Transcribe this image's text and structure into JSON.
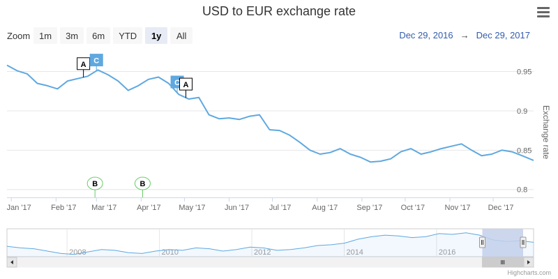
{
  "title": "USD to EUR exchange rate",
  "zoom": {
    "label": "Zoom",
    "buttons": [
      "1m",
      "3m",
      "6m",
      "YTD",
      "1y",
      "All"
    ],
    "active": "1y"
  },
  "range": {
    "from": "Dec 29, 2016",
    "arrow": "→",
    "to": "Dec 29, 2017"
  },
  "credits": "Highcharts.com",
  "colors": {
    "series": "#5fa8e0",
    "flagA_border": "#000000",
    "flagC_fill": "#5fa8e0",
    "flagB_border": "#66cc66",
    "navigator_mask": "#c3d0ea"
  },
  "chart_data": {
    "type": "line",
    "title": "USD to EUR exchange rate",
    "ylabel": "Exchange rate",
    "ylim": [
      0.8,
      0.95
    ],
    "yticks": [
      0.8,
      0.85,
      0.9,
      0.95
    ],
    "ytick_labels": [
      "0.8",
      "0.85",
      "0.9",
      "0.95"
    ],
    "xlim": [
      "2016-12-29",
      "2017-12-29"
    ],
    "xtick_dates": [
      "2017-01-01",
      "2017-02-01",
      "2017-03-01",
      "2017-04-01",
      "2017-05-01",
      "2017-06-01",
      "2017-07-01",
      "2017-08-01",
      "2017-09-01",
      "2017-10-01",
      "2017-11-01",
      "2017-12-01"
    ],
    "xtick_labels": [
      "Jan '17",
      "Feb '17",
      "Mar '17",
      "Apr '17",
      "May '17",
      "Jun '17",
      "Jul '17",
      "Aug '17",
      "Sep '17",
      "Oct '17",
      "Nov '17",
      "Dec '17"
    ],
    "grid": true,
    "series": [
      {
        "x": [
          "2016-12-29",
          "2017-01-05",
          "2017-01-12",
          "2017-01-19",
          "2017-01-26",
          "2017-02-02",
          "2017-02-09",
          "2017-02-16",
          "2017-02-23",
          "2017-03-02",
          "2017-03-09",
          "2017-03-16",
          "2017-03-23",
          "2017-03-30",
          "2017-04-06",
          "2017-04-13",
          "2017-04-20",
          "2017-04-27",
          "2017-05-04",
          "2017-05-11",
          "2017-05-18",
          "2017-05-25",
          "2017-06-01",
          "2017-06-08",
          "2017-06-15",
          "2017-06-22",
          "2017-06-29",
          "2017-07-06",
          "2017-07-13",
          "2017-07-20",
          "2017-07-27",
          "2017-08-03",
          "2017-08-10",
          "2017-08-17",
          "2017-08-24",
          "2017-08-31",
          "2017-09-07",
          "2017-09-14",
          "2017-09-21",
          "2017-09-28",
          "2017-10-05",
          "2017-10-12",
          "2017-10-19",
          "2017-10-26",
          "2017-11-02",
          "2017-11-09",
          "2017-11-16",
          "2017-11-23",
          "2017-11-30",
          "2017-12-07",
          "2017-12-14",
          "2017-12-21",
          "2017-12-29"
        ],
        "values": [
          0.958,
          0.951,
          0.947,
          0.935,
          0.932,
          0.928,
          0.938,
          0.941,
          0.944,
          0.952,
          0.946,
          0.938,
          0.926,
          0.932,
          0.94,
          0.943,
          0.935,
          0.921,
          0.915,
          0.917,
          0.895,
          0.89,
          0.891,
          0.889,
          0.893,
          0.895,
          0.876,
          0.875,
          0.869,
          0.86,
          0.85,
          0.845,
          0.847,
          0.852,
          0.845,
          0.841,
          0.835,
          0.836,
          0.839,
          0.848,
          0.852,
          0.845,
          0.848,
          0.852,
          0.855,
          0.858,
          0.85,
          0.843,
          0.845,
          0.85,
          0.848,
          0.843,
          0.837
        ]
      }
    ],
    "flags": [
      {
        "label": "A",
        "date": "2017-02-20",
        "style": "squarepin-top"
      },
      {
        "label": "C",
        "date": "2017-03-01",
        "style": "filled-top"
      },
      {
        "label": "C",
        "date": "2017-04-26",
        "style": "filled-top"
      },
      {
        "label": "A",
        "date": "2017-05-02",
        "style": "squarepin-top"
      },
      {
        "label": "B",
        "date": "2017-02-28",
        "style": "circlepin-bottom"
      },
      {
        "label": "B",
        "date": "2017-04-02",
        "style": "circlepin-bottom"
      }
    ],
    "navigator": {
      "xtick_labels": [
        "2008",
        "2010",
        "2012",
        "2014",
        "2016"
      ],
      "xtick_years": [
        2008,
        2010,
        2012,
        2014,
        2016
      ],
      "year_range": [
        2006.7,
        2018.1
      ],
      "selected": [
        "2016-12-29",
        "2017-12-29"
      ],
      "values": [
        0.78,
        0.76,
        0.75,
        0.72,
        0.69,
        0.68,
        0.71,
        0.74,
        0.73,
        0.7,
        0.69,
        0.72,
        0.74,
        0.73,
        0.76,
        0.75,
        0.72,
        0.74,
        0.77,
        0.76,
        0.73,
        0.74,
        0.76,
        0.79,
        0.8,
        0.82,
        0.87,
        0.9,
        0.92,
        0.91,
        0.89,
        0.9,
        0.94,
        0.93,
        0.95,
        0.92,
        0.86,
        0.84,
        0.85,
        0.83
      ]
    }
  }
}
